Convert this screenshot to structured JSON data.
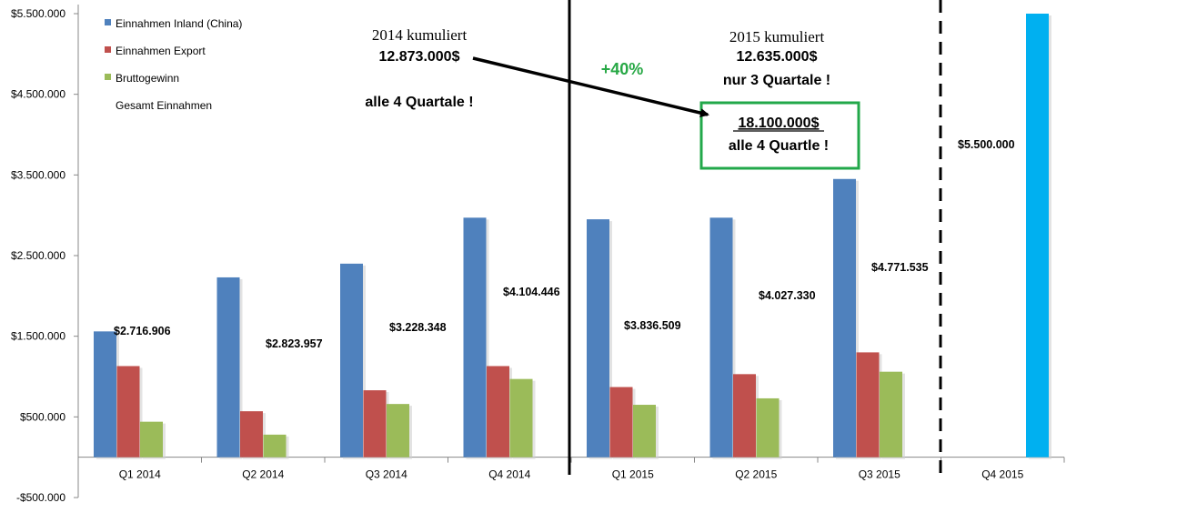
{
  "chart_data": {
    "type": "bar",
    "categories": [
      "Q1 2014",
      "Q2 2014",
      "Q3 2014",
      "Q4 2014",
      "Q1 2015",
      "Q2 2015",
      "Q3 2015",
      "Q4 2015"
    ],
    "series": [
      {
        "name": "Einnahmen Inland (China)",
        "color": "#4f81bd",
        "values": [
          1560000,
          2230000,
          2400000,
          2970000,
          2950000,
          2970000,
          3450000,
          null
        ]
      },
      {
        "name": "Einnahmen Export",
        "color": "#c0504d",
        "values": [
          1130000,
          570000,
          830000,
          1130000,
          870000,
          1030000,
          1300000,
          null
        ]
      },
      {
        "name": "Bruttogewinn",
        "color": "#9bbb59",
        "values": [
          440000,
          280000,
          660000,
          970000,
          650000,
          730000,
          1060000,
          null
        ]
      },
      {
        "name": "Gesamt Einnahmen",
        "color": "#00b0f0",
        "values": [
          null,
          null,
          null,
          null,
          null,
          null,
          null,
          5500000
        ]
      }
    ],
    "total_labels": [
      "$2.716.906",
      "$2.823.957",
      "$3.228.348",
      "$4.104.446",
      "$3.836.509",
      "$4.027.330",
      "$4.771.535",
      "$5.500.000"
    ],
    "ylim": [
      -500000,
      5500000
    ],
    "yticks": [
      -500000,
      500000,
      1500000,
      2500000,
      3500000,
      4500000,
      5500000
    ],
    "ytick_labels": [
      "-$500.000",
      "$500.000",
      "$1.500.000",
      "$2.500.000",
      "$3.500.000",
      "$4.500.000",
      "$5.500.000"
    ],
    "legend_position": "top-left",
    "grid": false,
    "annotations": {
      "y2014_title": "2014 kumuliert",
      "y2014_value": "12.873.000$",
      "y2014_note": "alle 4 Quartale !",
      "y2015_title": "2015 kumuliert",
      "y2015_value": "12.635.000$",
      "y2015_note": "nur 3 Quartale !",
      "growth": "+40%",
      "forecast_value": "18.100.000$",
      "forecast_note": "alle 4 Quartle !"
    }
  },
  "colors": {
    "growth": "#27a845",
    "box_border": "#22a84a"
  }
}
